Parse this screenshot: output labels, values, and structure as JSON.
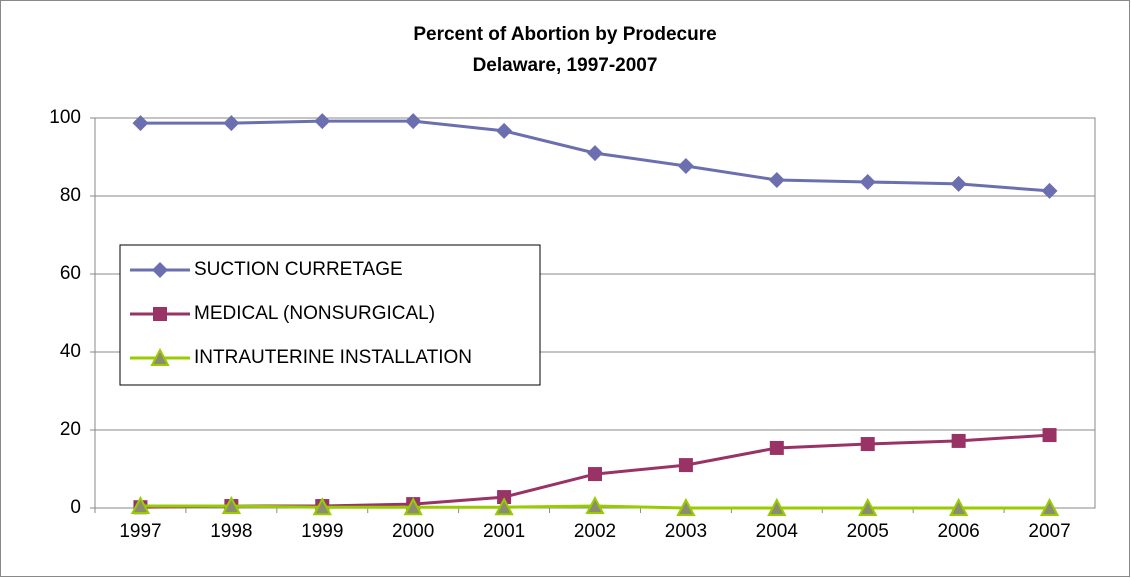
{
  "chart_data": {
    "type": "line",
    "title": "Percent of Abortion by Prodecure",
    "subtitle": "Delaware, 1997-2007",
    "categories": [
      "1997",
      "1998",
      "1999",
      "2000",
      "2001",
      "2002",
      "2003",
      "2004",
      "2005",
      "2006",
      "2007"
    ],
    "series": [
      {
        "name": "SUCTION CURRETAGE",
        "color": "#6b6fb0",
        "marker": "diamond",
        "values": [
          98.7,
          98.7,
          99.2,
          99.2,
          96.7,
          91.0,
          87.7,
          84.1,
          83.6,
          83.1,
          81.3
        ]
      },
      {
        "name": "MEDICAL (NONSURGICAL)",
        "color": "#993366",
        "marker": "square",
        "values": [
          0.2,
          0.5,
          0.5,
          1.0,
          2.8,
          8.7,
          11.0,
          15.4,
          16.4,
          17.2,
          18.7
        ]
      },
      {
        "name": "INTRAUTERINE INSTALLATION",
        "color": "#99cc00",
        "marker": "triangle",
        "values": [
          0.5,
          0.5,
          0.2,
          0.2,
          0.2,
          0.5,
          0,
          0,
          0,
          0,
          0
        ]
      }
    ],
    "ylim": [
      0,
      100
    ],
    "yticks": [
      0,
      20,
      40,
      60,
      80,
      100
    ],
    "grid": true
  }
}
